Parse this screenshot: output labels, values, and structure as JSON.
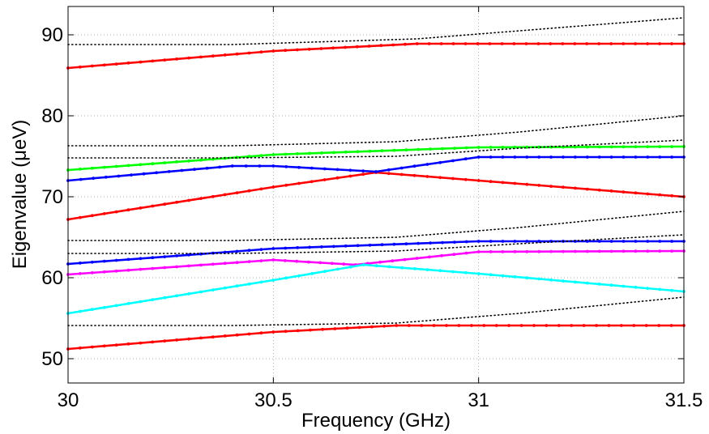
{
  "chart_data": {
    "type": "line",
    "title": "",
    "xlabel": "Frequency (GHz)",
    "ylabel": "Eigenvalue (μeV)",
    "xlim": [
      30,
      31.5
    ],
    "ylim": [
      47,
      93.5
    ],
    "grid": true,
    "legend": "none",
    "x_ticks": [
      30,
      30.5,
      31,
      31.5
    ],
    "x_tick_labels": [
      "30",
      "30.5",
      "31",
      "31.5"
    ],
    "y_ticks": [
      50,
      60,
      70,
      80,
      90
    ],
    "y_tick_labels": [
      "50",
      "60",
      "70",
      "80",
      "90"
    ],
    "colors": {
      "red": "#ff0000",
      "green": "#00ff00",
      "blue": "#0000ff",
      "magenta": "#ff00ff",
      "cyan": "#00ffff",
      "black": "#000000"
    },
    "series": [
      {
        "color": "red",
        "style": "solid",
        "points": [
          [
            30,
            85.9
          ],
          [
            30.5,
            88.0
          ],
          [
            30.85,
            88.9
          ],
          [
            31.5,
            88.9
          ]
        ]
      },
      {
        "color": "black",
        "style": "dotted",
        "points": [
          [
            30,
            88.8
          ],
          [
            30.4,
            88.8
          ],
          [
            30.85,
            89.5
          ],
          [
            31.1,
            90.5
          ],
          [
            31.5,
            92.1
          ]
        ]
      },
      {
        "color": "red",
        "style": "solid",
        "points": [
          [
            30,
            67.2
          ],
          [
            30.5,
            71.2
          ],
          [
            30.75,
            73.0
          ],
          [
            31.0,
            72.0
          ],
          [
            31.5,
            70.0
          ]
        ]
      },
      {
        "color": "blue",
        "style": "solid",
        "points": [
          [
            30,
            72.0
          ],
          [
            30.4,
            73.8
          ],
          [
            30.5,
            73.8
          ],
          [
            30.75,
            73.1
          ],
          [
            31.0,
            74.9
          ],
          [
            31.5,
            74.9
          ]
        ]
      },
      {
        "color": "green",
        "style": "solid",
        "points": [
          [
            30,
            73.3
          ],
          [
            30.5,
            75.2
          ],
          [
            31.0,
            76.1
          ],
          [
            31.5,
            76.2
          ]
        ]
      },
      {
        "color": "black",
        "style": "dotted",
        "points": [
          [
            30,
            76.3
          ],
          [
            30.4,
            76.3
          ],
          [
            30.8,
            76.8
          ],
          [
            31.1,
            78.0
          ],
          [
            31.5,
            80.0
          ]
        ]
      },
      {
        "color": "black",
        "style": "dotted",
        "points": [
          [
            30,
            74.8
          ],
          [
            30.4,
            74.8
          ],
          [
            30.8,
            75.0
          ],
          [
            31.1,
            76.0
          ],
          [
            31.5,
            77.0
          ]
        ]
      },
      {
        "color": "magenta",
        "style": "solid",
        "points": [
          [
            30,
            60.4
          ],
          [
            30.5,
            62.2
          ],
          [
            30.7,
            61.6
          ],
          [
            31.0,
            63.2
          ],
          [
            31.5,
            63.3
          ]
        ]
      },
      {
        "color": "cyan",
        "style": "solid",
        "points": [
          [
            30,
            55.6
          ],
          [
            30.5,
            59.7
          ],
          [
            30.72,
            61.6
          ],
          [
            31.0,
            60.5
          ],
          [
            31.5,
            58.3
          ]
        ]
      },
      {
        "color": "blue",
        "style": "solid",
        "points": [
          [
            30,
            61.7
          ],
          [
            30.5,
            63.6
          ],
          [
            31.0,
            64.5
          ],
          [
            31.5,
            64.5
          ]
        ]
      },
      {
        "color": "black",
        "style": "dotted",
        "points": [
          [
            30,
            64.6
          ],
          [
            30.4,
            64.6
          ],
          [
            30.8,
            65.0
          ],
          [
            31.1,
            66.2
          ],
          [
            31.5,
            68.2
          ]
        ]
      },
      {
        "color": "black",
        "style": "dotted",
        "points": [
          [
            30,
            63.0
          ],
          [
            30.4,
            63.0
          ],
          [
            30.8,
            63.3
          ],
          [
            31.1,
            64.2
          ],
          [
            31.5,
            65.3
          ]
        ]
      },
      {
        "color": "red",
        "style": "solid",
        "points": [
          [
            30,
            51.2
          ],
          [
            30.5,
            53.3
          ],
          [
            30.8,
            54.1
          ],
          [
            31.5,
            54.1
          ]
        ]
      },
      {
        "color": "black",
        "style": "dotted",
        "points": [
          [
            30,
            54.1
          ],
          [
            30.4,
            54.1
          ],
          [
            30.8,
            54.4
          ],
          [
            31.1,
            55.6
          ],
          [
            31.5,
            57.6
          ]
        ]
      }
    ]
  }
}
